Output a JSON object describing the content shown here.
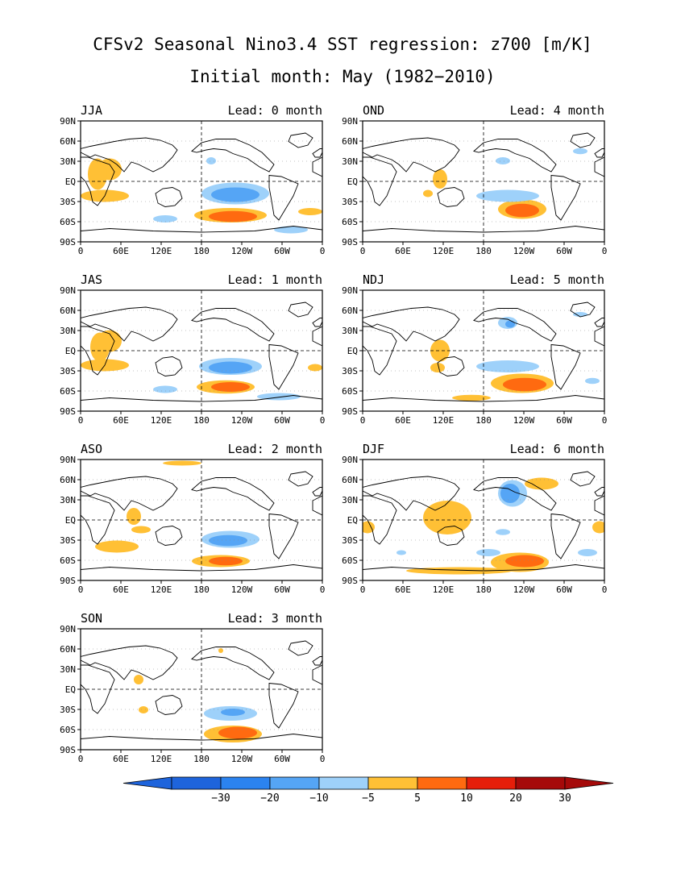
{
  "title": {
    "line1": "CFSv2 Seasonal Nino3.4 SST regression: z700 [m/K]",
    "line2": "Initial month: May (1982−2010)"
  },
  "panels": [
    {
      "season": "JJA",
      "lead": "Lead: 0 month"
    },
    {
      "season": "OND",
      "lead": "Lead: 4 month"
    },
    {
      "season": "JAS",
      "lead": "Lead: 1 month"
    },
    {
      "season": "NDJ",
      "lead": "Lead: 5 month"
    },
    {
      "season": "ASO",
      "lead": "Lead: 2 month"
    },
    {
      "season": "DJF",
      "lead": "Lead: 6 month"
    },
    {
      "season": "SON",
      "lead": "Lead: 3 month"
    }
  ],
  "axes": {
    "lon_ticks": [
      "0",
      "60E",
      "120E",
      "180",
      "120W",
      "60W",
      "0"
    ],
    "lat_ticks": [
      "90N",
      "60N",
      "30N",
      "EQ",
      "30S",
      "60S",
      "90S"
    ]
  },
  "colorbar": {
    "labels": [
      "−30",
      "−20",
      "−10",
      "−5",
      "5",
      "10",
      "20",
      "30"
    ],
    "colors": [
      "#1e64dc",
      "#2b83f0",
      "#55a5f5",
      "#9ed1fa",
      "#ffffff",
      "#ffc035",
      "#ff6a10",
      "#e61e0a",
      "#a50a0a"
    ]
  },
  "colors": {
    "neg_light": "#9ed1fa",
    "neg_mid": "#55a5f5",
    "neg_dark": "#2b83f0",
    "pos_light": "#ffc035",
    "pos_mid": "#ff6a10",
    "pos_dark": "#e61e0a"
  }
}
